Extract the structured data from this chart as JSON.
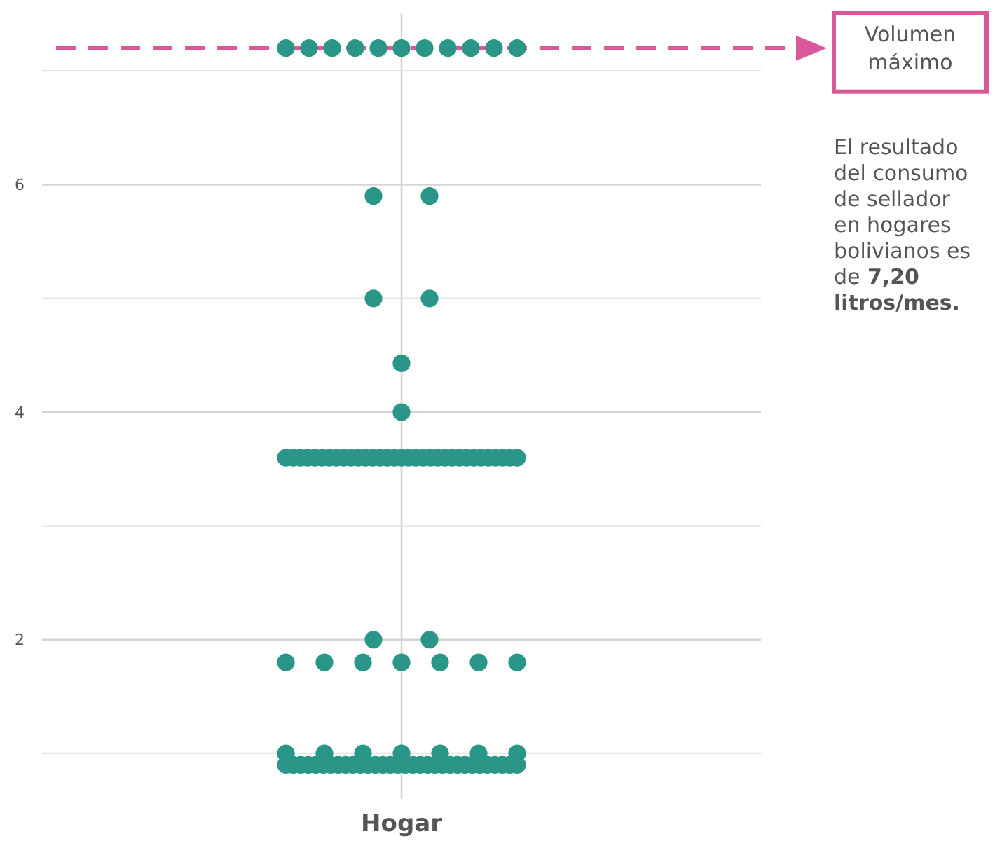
{
  "chart_data": {
    "type": "scatter",
    "categories": [
      "Hogar"
    ],
    "ylim": [
      0.6,
      7.5
    ],
    "yticks": [
      2,
      4,
      6
    ],
    "grid": true,
    "marker": "circle",
    "series": [
      {
        "color": "#2a9688",
        "x": [
          "Hogar",
          "Hogar",
          "Hogar",
          "Hogar",
          "Hogar",
          "Hogar",
          "Hogar",
          "Hogar",
          "Hogar",
          "Hogar",
          "Hogar",
          "Hogar",
          "Hogar",
          "Hogar",
          "Hogar",
          "Hogar",
          "Hogar",
          "Hogar",
          "Hogar",
          "Hogar",
          "Hogar",
          "Hogar",
          "Hogar",
          "Hogar",
          "Hogar",
          "Hogar",
          "Hogar",
          "Hogar",
          "Hogar",
          "Hogar",
          "Hogar",
          "Hogar",
          "Hogar",
          "Hogar",
          "Hogar",
          "Hogar",
          "Hogar",
          "Hogar",
          "Hogar",
          "Hogar",
          "Hogar",
          "Hogar",
          "Hogar",
          "Hogar",
          "Hogar",
          "Hogar",
          "Hogar",
          "Hogar",
          "Hogar",
          "Hogar",
          "Hogar",
          "Hogar",
          "Hogar",
          "Hogar",
          "Hogar",
          "Hogar",
          "Hogar",
          "Hogar",
          "Hogar",
          "Hogar",
          "Hogar",
          "Hogar",
          "Hogar",
          "Hogar",
          "Hogar",
          "Hogar",
          "Hogar",
          "Hogar",
          "Hogar",
          "Hogar",
          "Hogar",
          "Hogar",
          "Hogar",
          "Hogar",
          "Hogar",
          "Hogar",
          "Hogar",
          "Hogar",
          "Hogar",
          "Hogar",
          "Hogar",
          "Hogar",
          "Hogar",
          "Hogar",
          "Hogar",
          "Hogar",
          "Hogar",
          "Hogar",
          "Hogar",
          "Hogar",
          "Hogar",
          "Hogar",
          "Hogar",
          "Hogar",
          "Hogar",
          "Hogar",
          "Hogar",
          "Hogar"
        ],
        "values": [
          7.2,
          7.2,
          7.2,
          7.2,
          7.2,
          7.2,
          7.2,
          7.2,
          7.2,
          7.2,
          7.2,
          5.9,
          5.9,
          5.0,
          5.0,
          4.43,
          4.0,
          3.6,
          3.6,
          3.6,
          3.6,
          3.6,
          3.6,
          3.6,
          3.6,
          3.6,
          3.6,
          3.6,
          3.6,
          3.6,
          3.6,
          3.6,
          3.6,
          3.6,
          3.6,
          3.6,
          3.6,
          3.6,
          3.6,
          3.6,
          3.6,
          3.6,
          3.6,
          3.6,
          3.6,
          3.6,
          3.6,
          3.6,
          3.6,
          3.6,
          2.0,
          2.0,
          1.8,
          1.8,
          1.8,
          1.8,
          1.8,
          1.8,
          1.8,
          1.0,
          1.0,
          1.0,
          1.0,
          1.0,
          1.0,
          1.0,
          0.9,
          0.9,
          0.9,
          0.9,
          0.9,
          0.9,
          0.9,
          0.9,
          0.9,
          0.9,
          0.9,
          0.9,
          0.9,
          0.9,
          0.9,
          0.9,
          0.9,
          0.9,
          0.9,
          0.9,
          0.9,
          0.9,
          0.9,
          0.9,
          0.9,
          0.9,
          0.9,
          0.9,
          0.9,
          0.9,
          0.9,
          0.9
        ]
      }
    ],
    "ref_lines": [
      {
        "axis": "y",
        "value": 7.2,
        "label": "Volumen máximo",
        "color": "#d9589a",
        "line_style": "dashed"
      }
    ],
    "annotations": [
      "El resultado del consumo de sellador en hogares bolivianos es de 7,20 litros/mes."
    ]
  }
}
